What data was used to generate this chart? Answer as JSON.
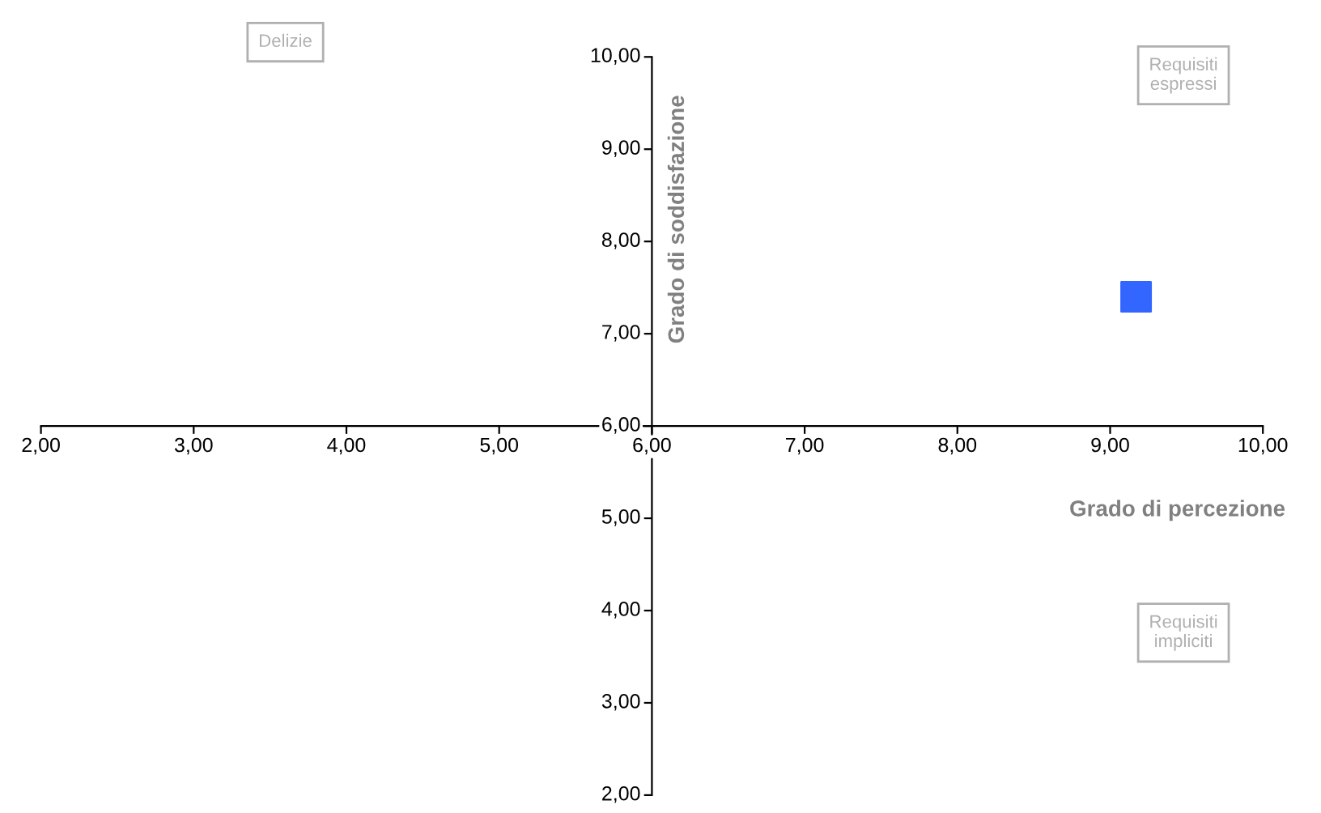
{
  "chart_data": {
    "type": "scatter",
    "xlabel": "Grado di percezione",
    "ylabel": "Grado di soddisfazione",
    "xlim": [
      2,
      10
    ],
    "ylim": [
      2,
      10
    ],
    "xticks": [
      {
        "value": 2,
        "label": "2,00"
      },
      {
        "value": 3,
        "label": "3,00"
      },
      {
        "value": 4,
        "label": "4,00"
      },
      {
        "value": 5,
        "label": "5,00"
      },
      {
        "value": 6,
        "label": "6,00"
      },
      {
        "value": 7,
        "label": "7,00"
      },
      {
        "value": 8,
        "label": "8,00"
      },
      {
        "value": 9,
        "label": "9,00"
      },
      {
        "value": 10,
        "label": "10,00"
      }
    ],
    "yticks": [
      {
        "value": 2,
        "label": "2,00"
      },
      {
        "value": 3,
        "label": "3,00"
      },
      {
        "value": 4,
        "label": "4,00"
      },
      {
        "value": 5,
        "label": "5,00"
      },
      {
        "value": 6,
        "label": "6,00"
      },
      {
        "value": 7,
        "label": "7,00"
      },
      {
        "value": 8,
        "label": "8,00"
      },
      {
        "value": 9,
        "label": "9,00"
      },
      {
        "value": 10,
        "label": "10,00"
      }
    ],
    "series": [
      {
        "color": "#3366ff",
        "x": [
          9.17
        ],
        "values": [
          7.4
        ]
      }
    ],
    "marker": "square",
    "grid": false,
    "legend": false,
    "annotations": [
      "Delizie",
      "Requisiti\nespressi",
      "Requisiti\nimpliciti"
    ]
  }
}
